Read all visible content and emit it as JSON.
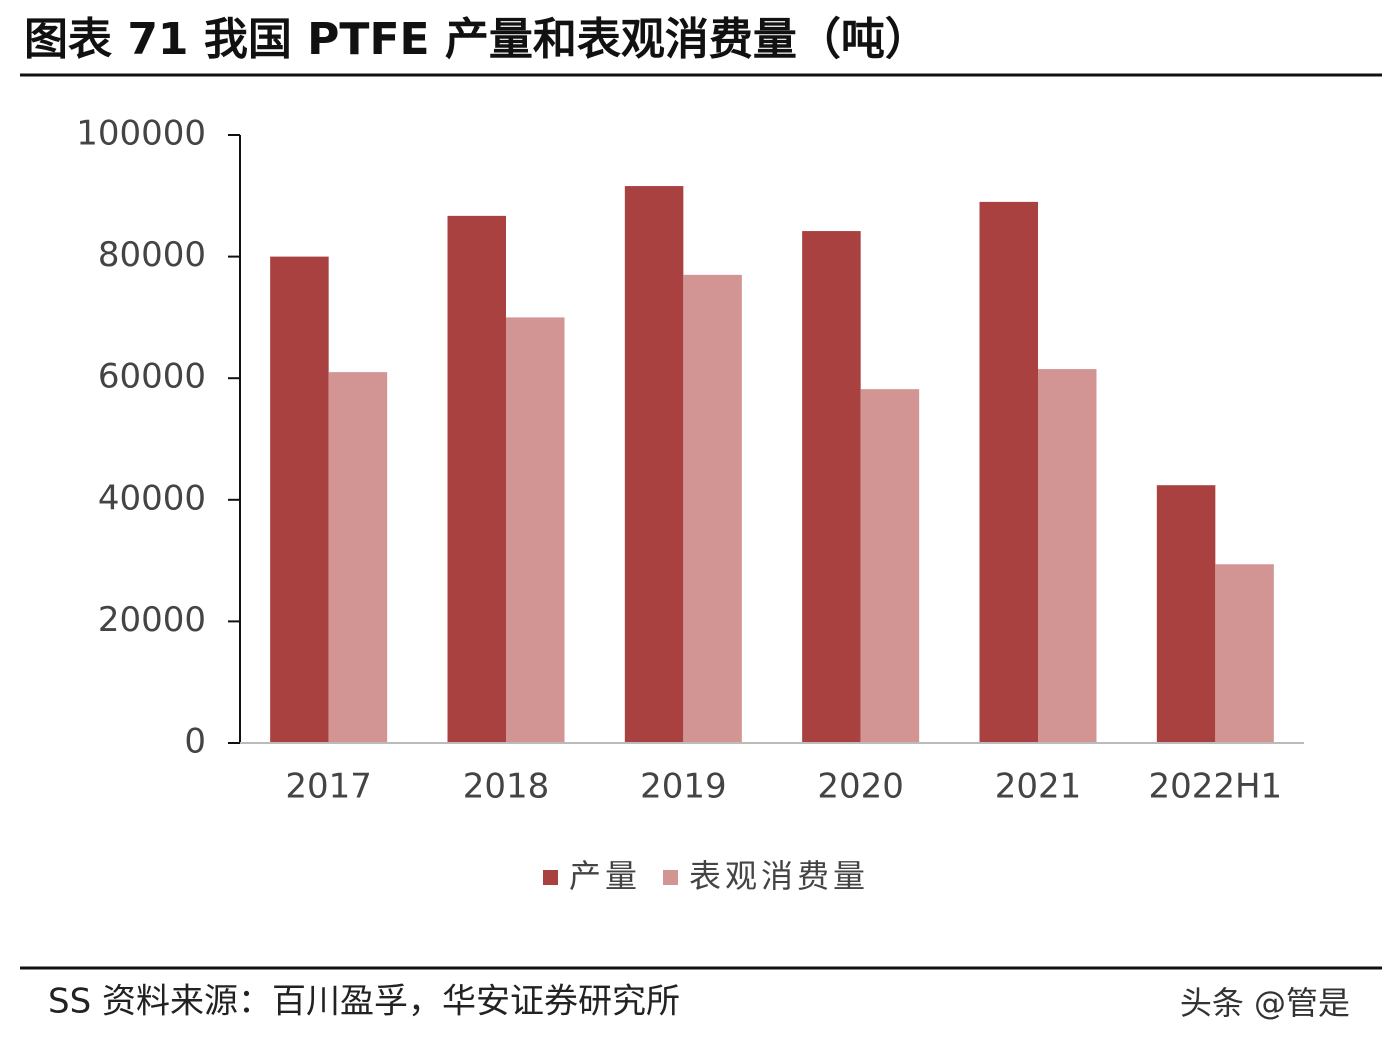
{
  "chart_data": {
    "type": "bar",
    "title": "图表 71 我国 PTFE 产量和表观消费量（吨）",
    "categories": [
      "2017",
      "2018",
      "2019",
      "2020",
      "2021",
      "2022H1"
    ],
    "series": [
      {
        "name": "产量",
        "color": "#a8413f",
        "values": [
          80000,
          86700,
          91600,
          84200,
          89000,
          42400
        ]
      },
      {
        "name": "表观消费量",
        "color": "#d39593",
        "values": [
          61000,
          70000,
          77000,
          58200,
          61500,
          29400
        ]
      }
    ],
    "ylim": [
      0,
      100000
    ],
    "yticks": [
      0,
      20000,
      40000,
      60000,
      80000,
      100000
    ],
    "legend": "bottom",
    "source": "SS 资料来源：百川盈孚，华安证券研究所",
    "watermark": "头条 @管是"
  }
}
